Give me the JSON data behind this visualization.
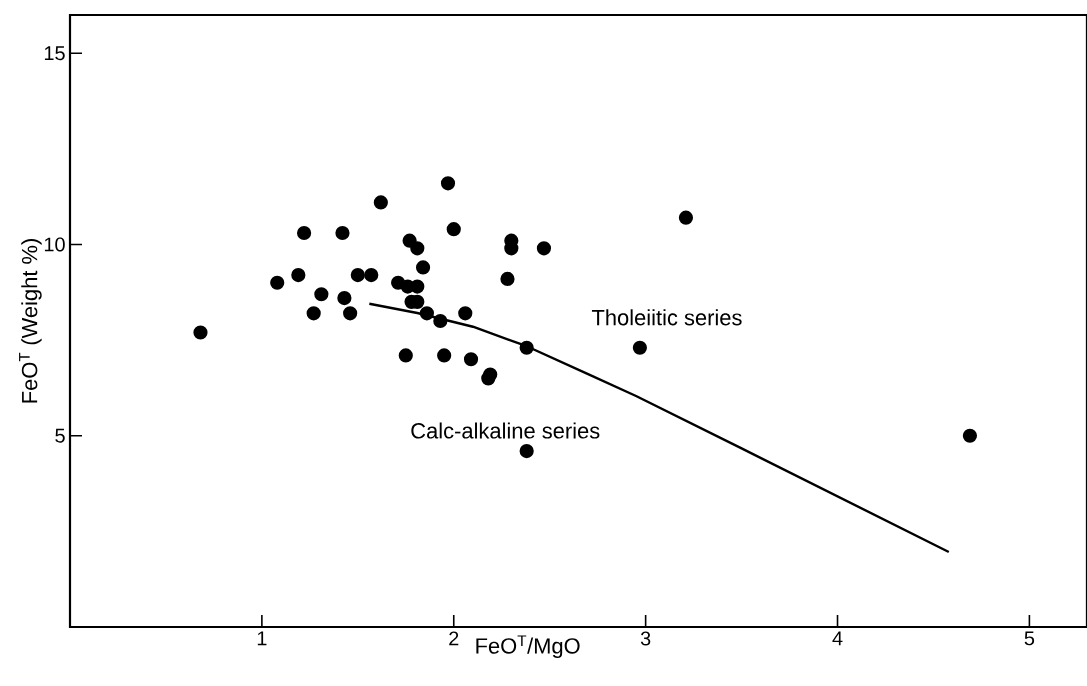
{
  "chart_data": {
    "type": "scatter",
    "xlabel": "FeO$^{T}$/MgO",
    "ylabel": "FeO$^{T}$ (Weight %)",
    "xlim": [
      0,
      5.3
    ],
    "ylim": [
      0,
      16
    ],
    "xticks": [
      1,
      2,
      3,
      4,
      5
    ],
    "yticks": [
      5,
      10,
      15
    ],
    "marker": "circle",
    "series": [
      {
        "color": "#000000",
        "x": [
          1.97,
          1.62,
          1.22,
          1.42,
          2.0,
          1.77,
          1.81,
          2.3,
          2.3,
          2.47,
          1.08,
          1.19,
          1.5,
          1.57,
          1.84,
          2.28,
          1.71,
          1.76,
          1.81,
          1.31,
          1.43,
          1.78,
          1.81,
          1.27,
          1.46,
          1.86,
          1.93,
          2.06,
          0.68,
          2.38,
          1.75,
          1.95,
          2.09,
          2.19,
          2.18,
          2.38,
          3.21,
          2.97,
          4.69
        ],
        "values": [
          11.6,
          11.1,
          10.3,
          10.3,
          10.4,
          10.1,
          9.9,
          10.1,
          9.9,
          9.9,
          9.0,
          9.2,
          9.2,
          9.2,
          9.4,
          9.1,
          9.0,
          8.9,
          8.9,
          8.7,
          8.6,
          8.5,
          8.5,
          8.2,
          8.2,
          8.2,
          8.0,
          8.2,
          7.7,
          7.3,
          7.1,
          7.1,
          7.0,
          6.6,
          6.5,
          4.6,
          10.7,
          7.3,
          5.0
        ]
      },
      {
        "type": "line",
        "color": "#000000",
        "marker": "none",
        "line_style": "solid",
        "x": [
          1.56,
          1.81,
          2.1,
          2.38,
          2.7,
          2.95,
          3.5,
          4.58
        ],
        "values": [
          8.45,
          8.21,
          7.85,
          7.34,
          6.61,
          6.04,
          4.67,
          1.96
        ]
      }
    ],
    "annotations": [
      "Tholeiitic series",
      "Calc-alkaline series"
    ]
  }
}
